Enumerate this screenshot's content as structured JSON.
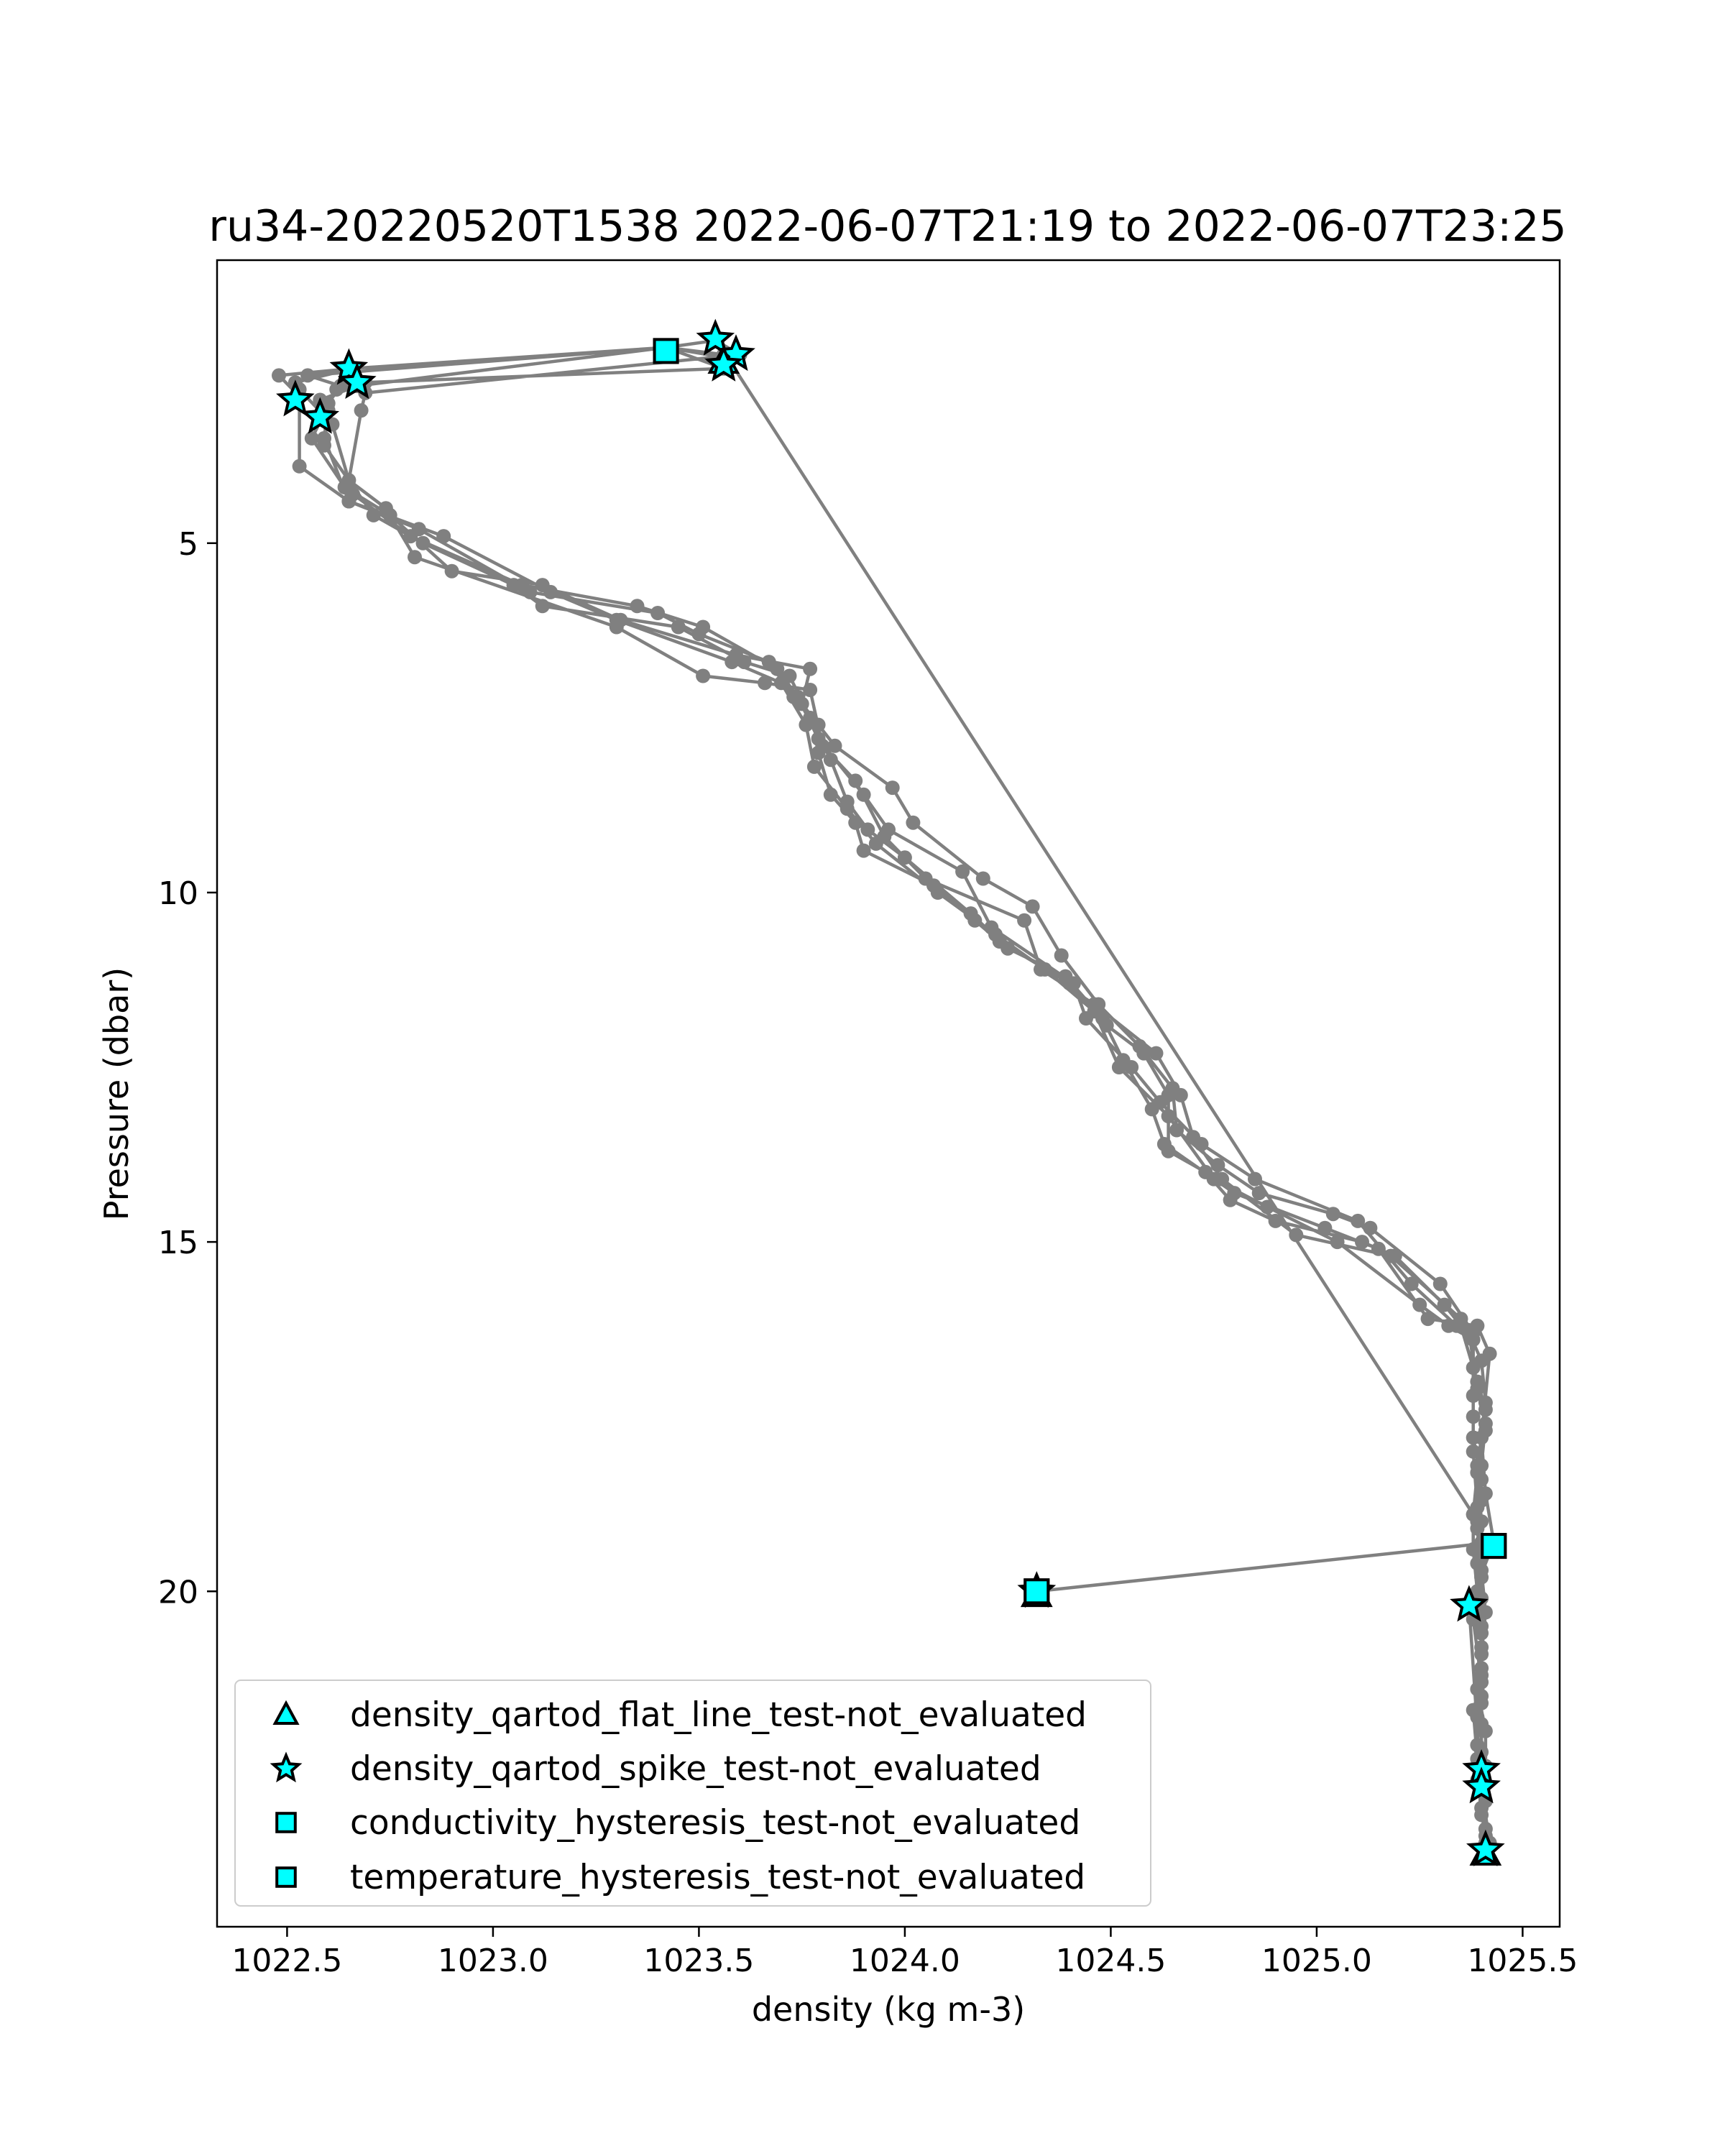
{
  "chart_data": {
    "type": "scatter",
    "title": "ru34-20220520T1538 2022-06-07T21:19 to 2022-06-07T23:25",
    "xlabel": "density (kg m-3)",
    "ylabel": "Pressure (dbar)",
    "xlim": [
      1022.33,
      1025.59
    ],
    "ylim": [
      24.8,
      0.95
    ],
    "y_inverted": true,
    "xticks": [
      1022.5,
      1023.0,
      1023.5,
      1024.0,
      1024.5,
      1025.0,
      1025.5
    ],
    "xtick_labels": [
      "1022.5",
      "1023.0",
      "1023.5",
      "1024.0",
      "1024.5",
      "1025.0",
      "1025.5"
    ],
    "yticks": [
      5,
      10,
      15,
      20
    ],
    "ytick_labels": [
      "5",
      "10",
      "15",
      "20"
    ],
    "grid": false,
    "legend_position": "lower-left",
    "profile_color": "#808080",
    "marker_fill": "#00ffff",
    "marker_edge": "#000000",
    "profile": [
      [
        1023.56,
        2.3
      ],
      [
        1023.42,
        2.2
      ],
      [
        1022.66,
        2.5
      ],
      [
        1022.48,
        2.6
      ],
      [
        1022.53,
        2.9
      ],
      [
        1022.53,
        3.9
      ],
      [
        1022.65,
        4.4
      ],
      [
        1022.82,
        4.8
      ],
      [
        1023.09,
        5.7
      ],
      [
        1023.4,
        6.0
      ],
      [
        1023.5,
        6.3
      ],
      [
        1023.67,
        6.7
      ],
      [
        1023.73,
        7.2
      ],
      [
        1023.79,
        7.6
      ],
      [
        1023.79,
        8.0
      ],
      [
        1023.82,
        8.6
      ],
      [
        1023.88,
        9.0
      ],
      [
        1023.9,
        9.4
      ],
      [
        1024.07,
        9.9
      ],
      [
        1024.17,
        10.4
      ],
      [
        1024.23,
        10.7
      ],
      [
        1024.4,
        11.3
      ],
      [
        1024.49,
        11.9
      ],
      [
        1024.58,
        12.3
      ],
      [
        1024.64,
        12.9
      ],
      [
        1024.64,
        13.7
      ],
      [
        1024.73,
        14.0
      ],
      [
        1024.79,
        14.4
      ],
      [
        1024.9,
        14.7
      ],
      [
        1025.11,
        15.0
      ],
      [
        1025.19,
        15.2
      ],
      [
        1025.31,
        15.9
      ],
      [
        1025.35,
        16.2
      ],
      [
        1025.39,
        17.0
      ],
      [
        1025.41,
        17.4
      ],
      [
        1025.39,
        18.2
      ],
      [
        1025.4,
        19.0
      ],
      [
        1025.39,
        19.6
      ],
      [
        1025.4,
        20.1
      ],
      [
        1025.4,
        20.8
      ],
      [
        1025.39,
        21.4
      ],
      [
        1025.41,
        22.0
      ],
      [
        1025.41,
        22.5
      ],
      [
        1025.41,
        23.0
      ],
      [
        1025.41,
        23.5
      ],
      [
        1025.41,
        23.7
      ],
      [
        1025.37,
        20.2
      ],
      [
        1025.43,
        19.3
      ],
      [
        1024.32,
        20.0
      ],
      [
        1024.32,
        20.0
      ],
      [
        1025.43,
        19.3
      ],
      [
        1025.41,
        18.6
      ],
      [
        1025.4,
        17.8
      ],
      [
        1025.42,
        16.6
      ],
      [
        1025.39,
        16.2
      ],
      [
        1025.27,
        16.1
      ],
      [
        1025.15,
        15.1
      ],
      [
        1025.02,
        14.8
      ],
      [
        1024.8,
        14.3
      ],
      [
        1024.63,
        13.6
      ],
      [
        1024.6,
        13.1
      ],
      [
        1024.53,
        12.4
      ],
      [
        1024.48,
        11.8
      ],
      [
        1024.39,
        11.2
      ],
      [
        1024.25,
        10.8
      ],
      [
        1024.16,
        10.3
      ],
      [
        1024.0,
        9.5
      ],
      [
        1023.91,
        9.1
      ],
      [
        1023.86,
        8.7
      ],
      [
        1023.82,
        8.1
      ],
      [
        1023.77,
        7.5
      ],
      [
        1023.72,
        6.9
      ],
      [
        1023.61,
        6.7
      ],
      [
        1023.45,
        6.2
      ],
      [
        1023.12,
        5.9
      ],
      [
        1023.05,
        5.6
      ],
      [
        1022.83,
        5.0
      ],
      [
        1022.71,
        4.6
      ],
      [
        1022.59,
        3.6
      ],
      [
        1022.6,
        3.1
      ],
      [
        1022.58,
        2.95
      ],
      [
        1022.67,
        2.75
      ],
      [
        1023.42,
        2.2
      ],
      [
        1023.56,
        2.5
      ],
      [
        1022.69,
        2.7
      ],
      [
        1022.62,
        2.8
      ],
      [
        1022.56,
        3.5
      ],
      [
        1022.64,
        4.2
      ],
      [
        1022.75,
        4.6
      ],
      [
        1022.9,
        5.4
      ],
      [
        1023.12,
        5.6
      ],
      [
        1023.31,
        6.1
      ],
      [
        1023.59,
        6.6
      ],
      [
        1023.77,
        6.8
      ],
      [
        1023.75,
        7.3
      ],
      [
        1023.83,
        7.9
      ],
      [
        1023.97,
        8.5
      ],
      [
        1024.02,
        9.0
      ],
      [
        1024.19,
        9.8
      ],
      [
        1024.31,
        10.2
      ],
      [
        1024.38,
        10.9
      ],
      [
        1024.47,
        11.6
      ],
      [
        1024.57,
        12.2
      ],
      [
        1024.65,
        12.8
      ],
      [
        1024.66,
        13.4
      ],
      [
        1024.76,
        13.9
      ],
      [
        1024.86,
        14.3
      ],
      [
        1025.04,
        14.6
      ],
      [
        1025.13,
        14.8
      ],
      [
        1025.3,
        15.6
      ],
      [
        1025.38,
        16.3
      ],
      [
        1025.38,
        17.2
      ],
      [
        1025.38,
        17.8
      ],
      [
        1025.4,
        18.4
      ],
      [
        1025.39,
        19.1
      ],
      [
        1025.4,
        19.8
      ],
      [
        1025.4,
        20.5
      ],
      [
        1025.4,
        21.1
      ],
      [
        1025.4,
        21.6
      ],
      [
        1025.39,
        22.2
      ],
      [
        1025.4,
        22.6
      ],
      [
        1025.4,
        23.2
      ],
      [
        1025.42,
        23.6
      ],
      [
        1025.4,
        22.8
      ],
      [
        1025.39,
        22.4
      ],
      [
        1025.38,
        21.7
      ],
      [
        1025.4,
        21.3
      ],
      [
        1025.38,
        20.4
      ],
      [
        1025.4,
        19.5
      ],
      [
        1025.39,
        18.8
      ],
      [
        1025.38,
        18.0
      ],
      [
        1025.38,
        17.5
      ],
      [
        1025.38,
        16.8
      ],
      [
        1025.38,
        16.4
      ],
      [
        1025.32,
        16.2
      ],
      [
        1025.25,
        15.9
      ],
      [
        1025.05,
        15.0
      ],
      [
        1024.88,
        14.5
      ],
      [
        1024.75,
        14.1
      ],
      [
        1024.64,
        13.2
      ],
      [
        1024.52,
        12.5
      ],
      [
        1024.46,
        11.7
      ],
      [
        1024.34,
        11.1
      ],
      [
        1024.22,
        10.6
      ],
      [
        1024.08,
        10.0
      ],
      [
        1023.93,
        9.3
      ],
      [
        1023.86,
        8.8
      ],
      [
        1023.78,
        8.2
      ],
      [
        1023.76,
        7.6
      ],
      [
        1023.7,
        7.0
      ],
      [
        1023.58,
        6.7
      ],
      [
        1023.3,
        6.1
      ],
      [
        1023.14,
        5.7
      ],
      [
        1022.88,
        4.9
      ],
      [
        1022.65,
        4.4
      ],
      [
        1022.59,
        3.5
      ],
      [
        1022.6,
        3.0
      ],
      [
        1022.63,
        2.75
      ],
      [
        1022.55,
        2.6
      ],
      [
        1023.42,
        2.2
      ],
      [
        1023.54,
        2.1
      ],
      [
        1023.6,
        2.3
      ],
      [
        1022.69,
        2.85
      ],
      [
        1022.68,
        3.1
      ],
      [
        1022.65,
        4.1
      ],
      [
        1022.74,
        4.5
      ],
      [
        1022.81,
        5.2
      ],
      [
        1023.3,
        6.2
      ],
      [
        1023.51,
        6.9
      ],
      [
        1023.66,
        7.0
      ],
      [
        1023.77,
        7.1
      ],
      [
        1023.8,
        7.9
      ],
      [
        1023.88,
        8.4
      ],
      [
        1023.95,
        9.2
      ],
      [
        1024.05,
        9.8
      ],
      [
        1024.29,
        10.4
      ],
      [
        1024.33,
        11.1
      ],
      [
        1024.46,
        11.6
      ],
      [
        1024.61,
        12.3
      ],
      [
        1024.67,
        12.9
      ],
      [
        1024.7,
        13.5
      ],
      [
        1024.77,
        14.1
      ],
      [
        1024.95,
        14.9
      ],
      [
        1025.18,
        15.2
      ],
      [
        1025.35,
        16.1
      ],
      [
        1025.37,
        16.3
      ],
      [
        1025.39,
        17.1
      ],
      [
        1025.41,
        17.6
      ],
      [
        1025.4,
        18.2
      ],
      [
        1025.4,
        18.7
      ],
      [
        1025.39,
        19.0
      ],
      [
        1025.4,
        19.3
      ],
      [
        1025.4,
        19.7
      ],
      [
        1025.41,
        20.3
      ],
      [
        1025.4,
        20.9
      ],
      [
        1025.4,
        21.5
      ],
      [
        1025.4,
        21.9
      ],
      [
        1025.4,
        22.3
      ],
      [
        1025.4,
        22.8
      ],
      [
        1025.41,
        23.4
      ],
      [
        1025.41,
        23.7
      ],
      [
        1025.41,
        23.6
      ],
      [
        1025.4,
        23.1
      ],
      [
        1025.39,
        22.7
      ],
      [
        1025.39,
        21.8
      ],
      [
        1025.4,
        21.2
      ],
      [
        1025.4,
        20.6
      ],
      [
        1025.39,
        20.0
      ],
      [
        1025.38,
        19.4
      ],
      [
        1025.38,
        18.9
      ],
      [
        1025.39,
        18.3
      ],
      [
        1025.41,
        17.7
      ],
      [
        1025.41,
        17.3
      ],
      [
        1025.4,
        16.7
      ],
      [
        1025.37,
        16.3
      ],
      [
        1025.34,
        16.2
      ],
      [
        1025.23,
        15.6
      ],
      [
        1025.1,
        14.7
      ],
      [
        1024.85,
        14.1
      ],
      [
        1024.72,
        13.6
      ],
      [
        1024.62,
        13.0
      ],
      [
        1024.55,
        12.5
      ],
      [
        1024.44,
        11.8
      ],
      [
        1024.41,
        11.3
      ],
      [
        1024.21,
        10.5
      ],
      [
        1024.14,
        9.7
      ],
      [
        1023.96,
        9.1
      ],
      [
        1023.9,
        8.6
      ],
      [
        1023.79,
        7.8
      ],
      [
        1023.74,
        7.2
      ],
      [
        1023.69,
        6.8
      ],
      [
        1023.51,
        6.2
      ],
      [
        1023.35,
        5.9
      ],
      [
        1023.07,
        5.6
      ],
      [
        1022.8,
        4.9
      ],
      [
        1022.66,
        4.3
      ],
      [
        1022.61,
        3.3
      ],
      [
        1022.53,
        2.8
      ],
      [
        1022.52,
        2.7
      ],
      [
        1022.66,
        2.5
      ],
      [
        1023.42,
        2.2
      ],
      [
        1023.57,
        2.35
      ],
      [
        1025.38,
        18.9
      ]
    ],
    "series": [
      {
        "name": "density_qartod_flat_line_test-not_evaluated",
        "marker": "triangle",
        "points": [
          [
            1023.56,
            2.4
          ],
          [
            1024.32,
            20.05
          ],
          [
            1025.41,
            23.75
          ]
        ]
      },
      {
        "name": "density_qartod_spike_test-not_evaluated",
        "marker": "star",
        "points": [
          [
            1022.65,
            2.5
          ],
          [
            1022.67,
            2.7
          ],
          [
            1022.52,
            2.95
          ],
          [
            1022.58,
            3.2
          ],
          [
            1023.54,
            2.08
          ],
          [
            1023.59,
            2.3
          ],
          [
            1023.56,
            2.45
          ],
          [
            1024.32,
            20.0
          ],
          [
            1025.37,
            20.2
          ],
          [
            1025.4,
            22.55
          ],
          [
            1025.4,
            22.8
          ],
          [
            1025.41,
            23.7
          ]
        ]
      },
      {
        "name": "conductivity_hysteresis_test-not_evaluated",
        "marker": "square",
        "points": [
          [
            1023.42,
            2.25
          ],
          [
            1024.32,
            20.0
          ],
          [
            1025.43,
            19.35
          ]
        ]
      },
      {
        "name": "temperature_hysteresis_test-not_evaluated",
        "marker": "square",
        "points": [
          [
            1023.42,
            2.25
          ],
          [
            1024.32,
            20.0
          ],
          [
            1025.43,
            19.35
          ]
        ]
      }
    ]
  }
}
